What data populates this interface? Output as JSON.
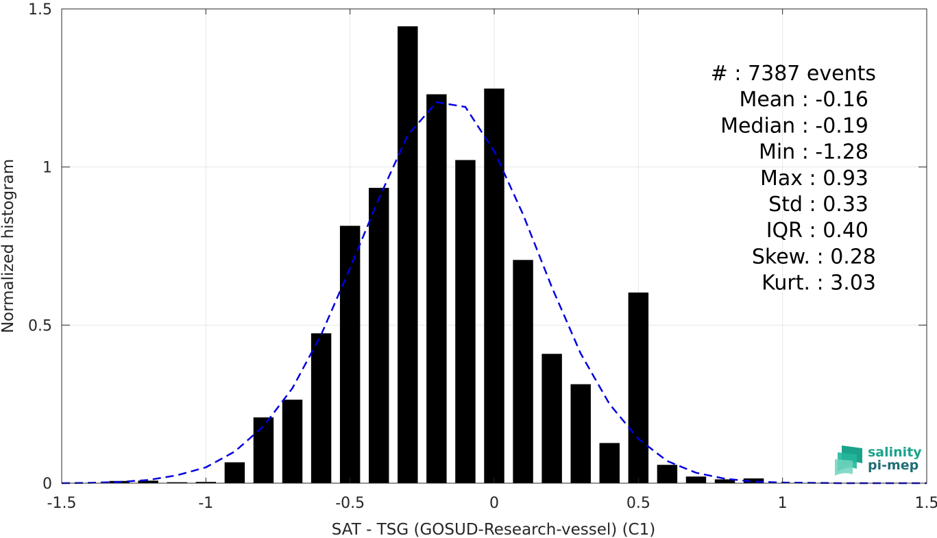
{
  "chart_data": {
    "type": "bar",
    "xlabel": "SAT - TSG (GOSUD-Research-vessel) (C1)",
    "ylabel": "Normalized histogram",
    "xlim": [
      -1.5,
      1.5
    ],
    "ylim": [
      0,
      1.5
    ],
    "xticks": [
      "-1.5",
      "-1",
      "-0.5",
      "0",
      "0.5",
      "1",
      "1.5"
    ],
    "yticks": [
      "0",
      "0.5",
      "1",
      "1.5"
    ],
    "grid": true,
    "bar_color": "#000000",
    "curve_color": "#0000e0",
    "bars": {
      "x": [
        -1.3,
        -1.2,
        -1.1,
        -1.0,
        -0.9,
        -0.8,
        -0.7,
        -0.6,
        -0.5,
        -0.4,
        -0.3,
        -0.2,
        -0.1,
        0.0,
        0.1,
        0.2,
        0.3,
        0.4,
        0.5,
        0.6,
        0.7,
        0.8,
        0.9
      ],
      "values": [
        0.007,
        0.008,
        0.003,
        0.004,
        0.066,
        0.208,
        0.264,
        0.474,
        0.814,
        0.934,
        1.445,
        1.23,
        1.022,
        1.248,
        0.706,
        0.409,
        0.313,
        0.127,
        0.603,
        0.058,
        0.021,
        0.012,
        0.015
      ]
    },
    "fit_curve": {
      "style": "dashed",
      "x": [
        -1.5,
        -1.4,
        -1.3,
        -1.2,
        -1.1,
        -1.0,
        -0.9,
        -0.8,
        -0.7,
        -0.6,
        -0.5,
        -0.4,
        -0.3,
        -0.2,
        -0.1,
        0.0,
        0.1,
        0.2,
        0.3,
        0.4,
        0.5,
        0.6,
        0.7,
        0.8,
        0.9,
        1.0,
        1.1,
        1.2,
        1.3,
        1.4,
        1.5
      ],
      "y": [
        0.0,
        0.001,
        0.004,
        0.01,
        0.025,
        0.05,
        0.1,
        0.18,
        0.3,
        0.47,
        0.68,
        0.9,
        1.1,
        1.205,
        1.19,
        1.05,
        0.85,
        0.62,
        0.41,
        0.25,
        0.14,
        0.07,
        0.033,
        0.014,
        0.005,
        0.002,
        0.001,
        0.0,
        0.0,
        0.0,
        0.0
      ]
    }
  },
  "stats": [
    {
      "label": "#  ",
      "value": ": 7387 events"
    },
    {
      "label": "Mean ",
      "value": ": -0.16"
    },
    {
      "label": "Median ",
      "value": ": -0.19"
    },
    {
      "label": "Min ",
      "value": ": -1.28"
    },
    {
      "label": "Max ",
      "value": ": 0.93"
    },
    {
      "label": "Std ",
      "value": ": 0.33"
    },
    {
      "label": "IQR ",
      "value": ": 0.40"
    },
    {
      "label": "Skew. ",
      "value": ": 0.28"
    },
    {
      "label": "Kurt. ",
      "value": ": 3.03"
    }
  ],
  "logo": {
    "line1": "salinity",
    "line2": "pi-mep",
    "color1": "#1aa38a",
    "color2": "#1f6e74"
  }
}
